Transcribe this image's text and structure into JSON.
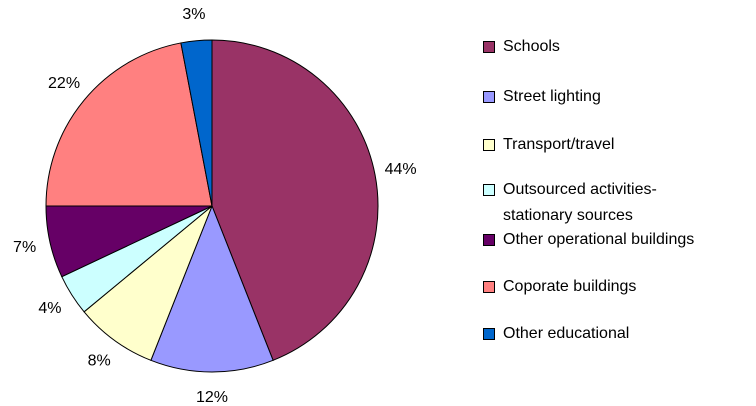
{
  "chart_data": {
    "type": "pie",
    "categories": [
      "Schools",
      "Street lighting",
      "Transport/travel",
      "Outsourced activities- stationary sources",
      "Other operational buildings",
      "Coporate buildings",
      "Other educational"
    ],
    "values": [
      44,
      12,
      8,
      4,
      7,
      22,
      3
    ],
    "value_labels": [
      "44%",
      "12%",
      "8%",
      "4%",
      "7%",
      "22%",
      "3%"
    ],
    "colors": [
      "#993366",
      "#9999ff",
      "#ffffcc",
      "#ccffff",
      "#660066",
      "#ff8080",
      "#0066cc"
    ],
    "legend": "right"
  }
}
